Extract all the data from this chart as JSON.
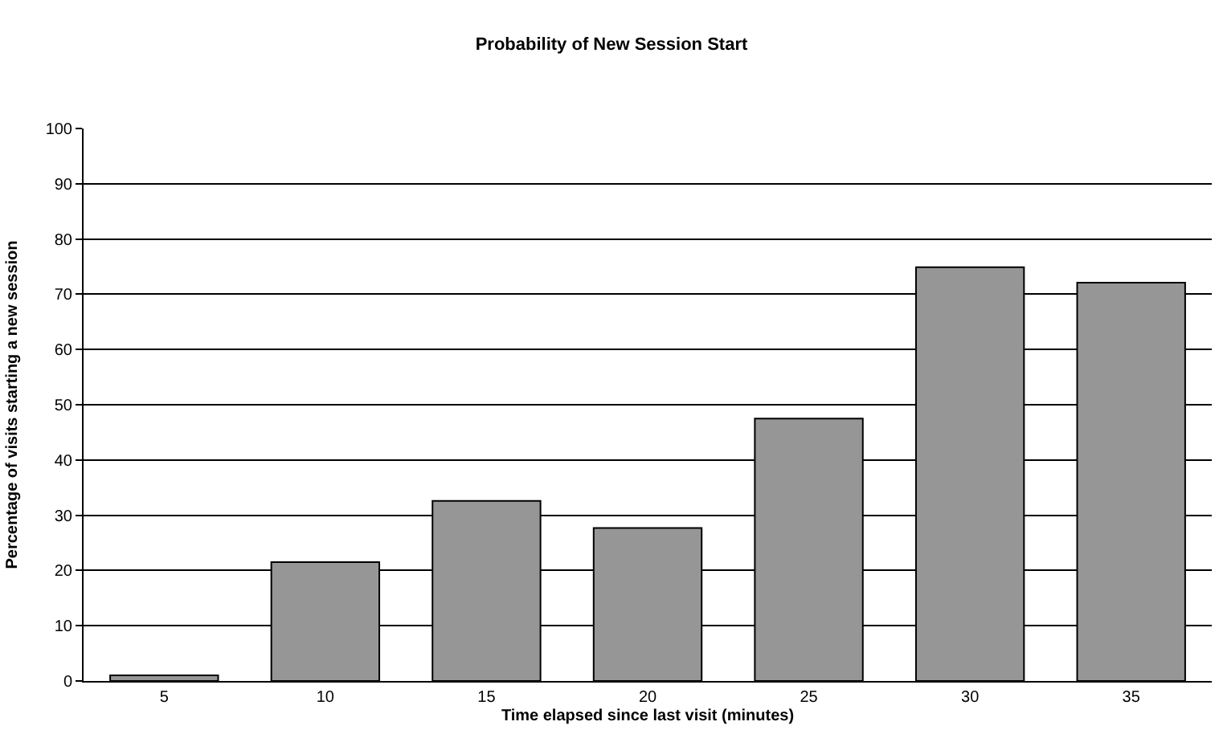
{
  "chart_data": {
    "type": "bar",
    "title": "Probability of New Session Start",
    "xlabel": "Time elapsed since last visit (minutes)",
    "ylabel": "Percentage of visits starting a new session",
    "categories": [
      "5",
      "10",
      "15",
      "20",
      "25",
      "30",
      "35"
    ],
    "values": [
      1.0,
      21.5,
      32.6,
      27.7,
      47.5,
      74.9,
      72.1
    ],
    "color": "#969696",
    "ylim": [
      0,
      100
    ],
    "yticks": [
      0,
      10,
      20,
      30,
      40,
      50,
      60,
      70,
      80,
      90,
      100
    ],
    "grid": "y"
  }
}
